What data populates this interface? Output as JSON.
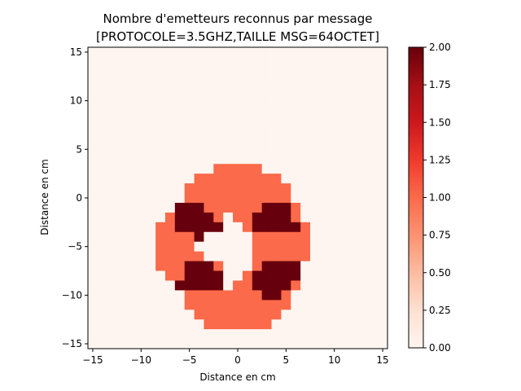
{
  "chart_data": {
    "type": "heatmap",
    "title": "Nombre d'emetteurs reconnus par message",
    "subtitle": "[PROTOCOLE=3.5GHZ,TAILLE MSG=64OCTET]",
    "xlabel": "Distance en cm",
    "ylabel": "Distance en cm",
    "xlim": [
      -15.5,
      15.5
    ],
    "ylim": [
      -15.5,
      15.5
    ],
    "xticks": [
      -15,
      -10,
      -5,
      0,
      5,
      10,
      15
    ],
    "yticks": [
      -15,
      -10,
      -5,
      0,
      5,
      10,
      15
    ],
    "colormap": "Reds",
    "colorbar": {
      "min": 0.0,
      "max": 2.0,
      "ticks": [
        "0.00",
        "0.25",
        "0.50",
        "0.75",
        "1.00",
        "1.25",
        "1.50",
        "1.75",
        "2.00"
      ]
    },
    "colors": {
      "zero": "#fff5f0",
      "one": "#fb6a4a",
      "two": "#67000d"
    },
    "cell_size": 1,
    "grid_x_start": -15.5,
    "grid_y_top": 15.5,
    "rows": [
      "...............................",
      "...............................",
      "...............................",
      "...............................",
      "...............................",
      "...............................",
      "...............................",
      "...............................",
      "...............................",
      "...............................",
      "...............................",
      "...............................",
      ".............11111.............",
      "...........111111111...........",
      "..........11111111111..........",
      "..........11111111111..........",
      ".........2221111112221.........",
      "........122221.1122221.........",
      ".......1122222..1222221........",
      ".......11112.....111111........",
      ".......1111......111111........",
      ".......11111.....111111........",
      ".......1112221...12222.........",
      "........112222..122222.........",
      ".........22222.1122221.........",
      "..........11111111221..........",
      "..........11111111111..........",
      "...........111111111...........",
      "............1111111............",
      "...............................",
      "..............................."
    ]
  }
}
